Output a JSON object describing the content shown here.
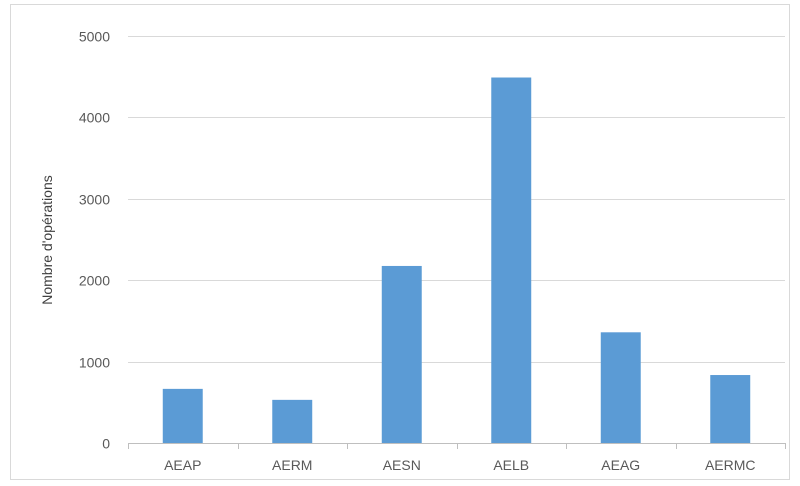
{
  "chart_data": {
    "type": "bar",
    "categories": [
      "AEAP",
      "AERM",
      "AESN",
      "AELB",
      "AEAG",
      "AERMC"
    ],
    "series": [
      {
        "values": [
          665,
          530,
          2175,
          4490,
          1360,
          835
        ],
        "color": "#5b9bd5"
      }
    ],
    "ylabel": "Nombre d'opérations",
    "ylim": [
      0,
      5000
    ],
    "yticks": [
      0,
      1000,
      2000,
      3000,
      4000,
      5000
    ],
    "grid": true,
    "legend": "none"
  }
}
